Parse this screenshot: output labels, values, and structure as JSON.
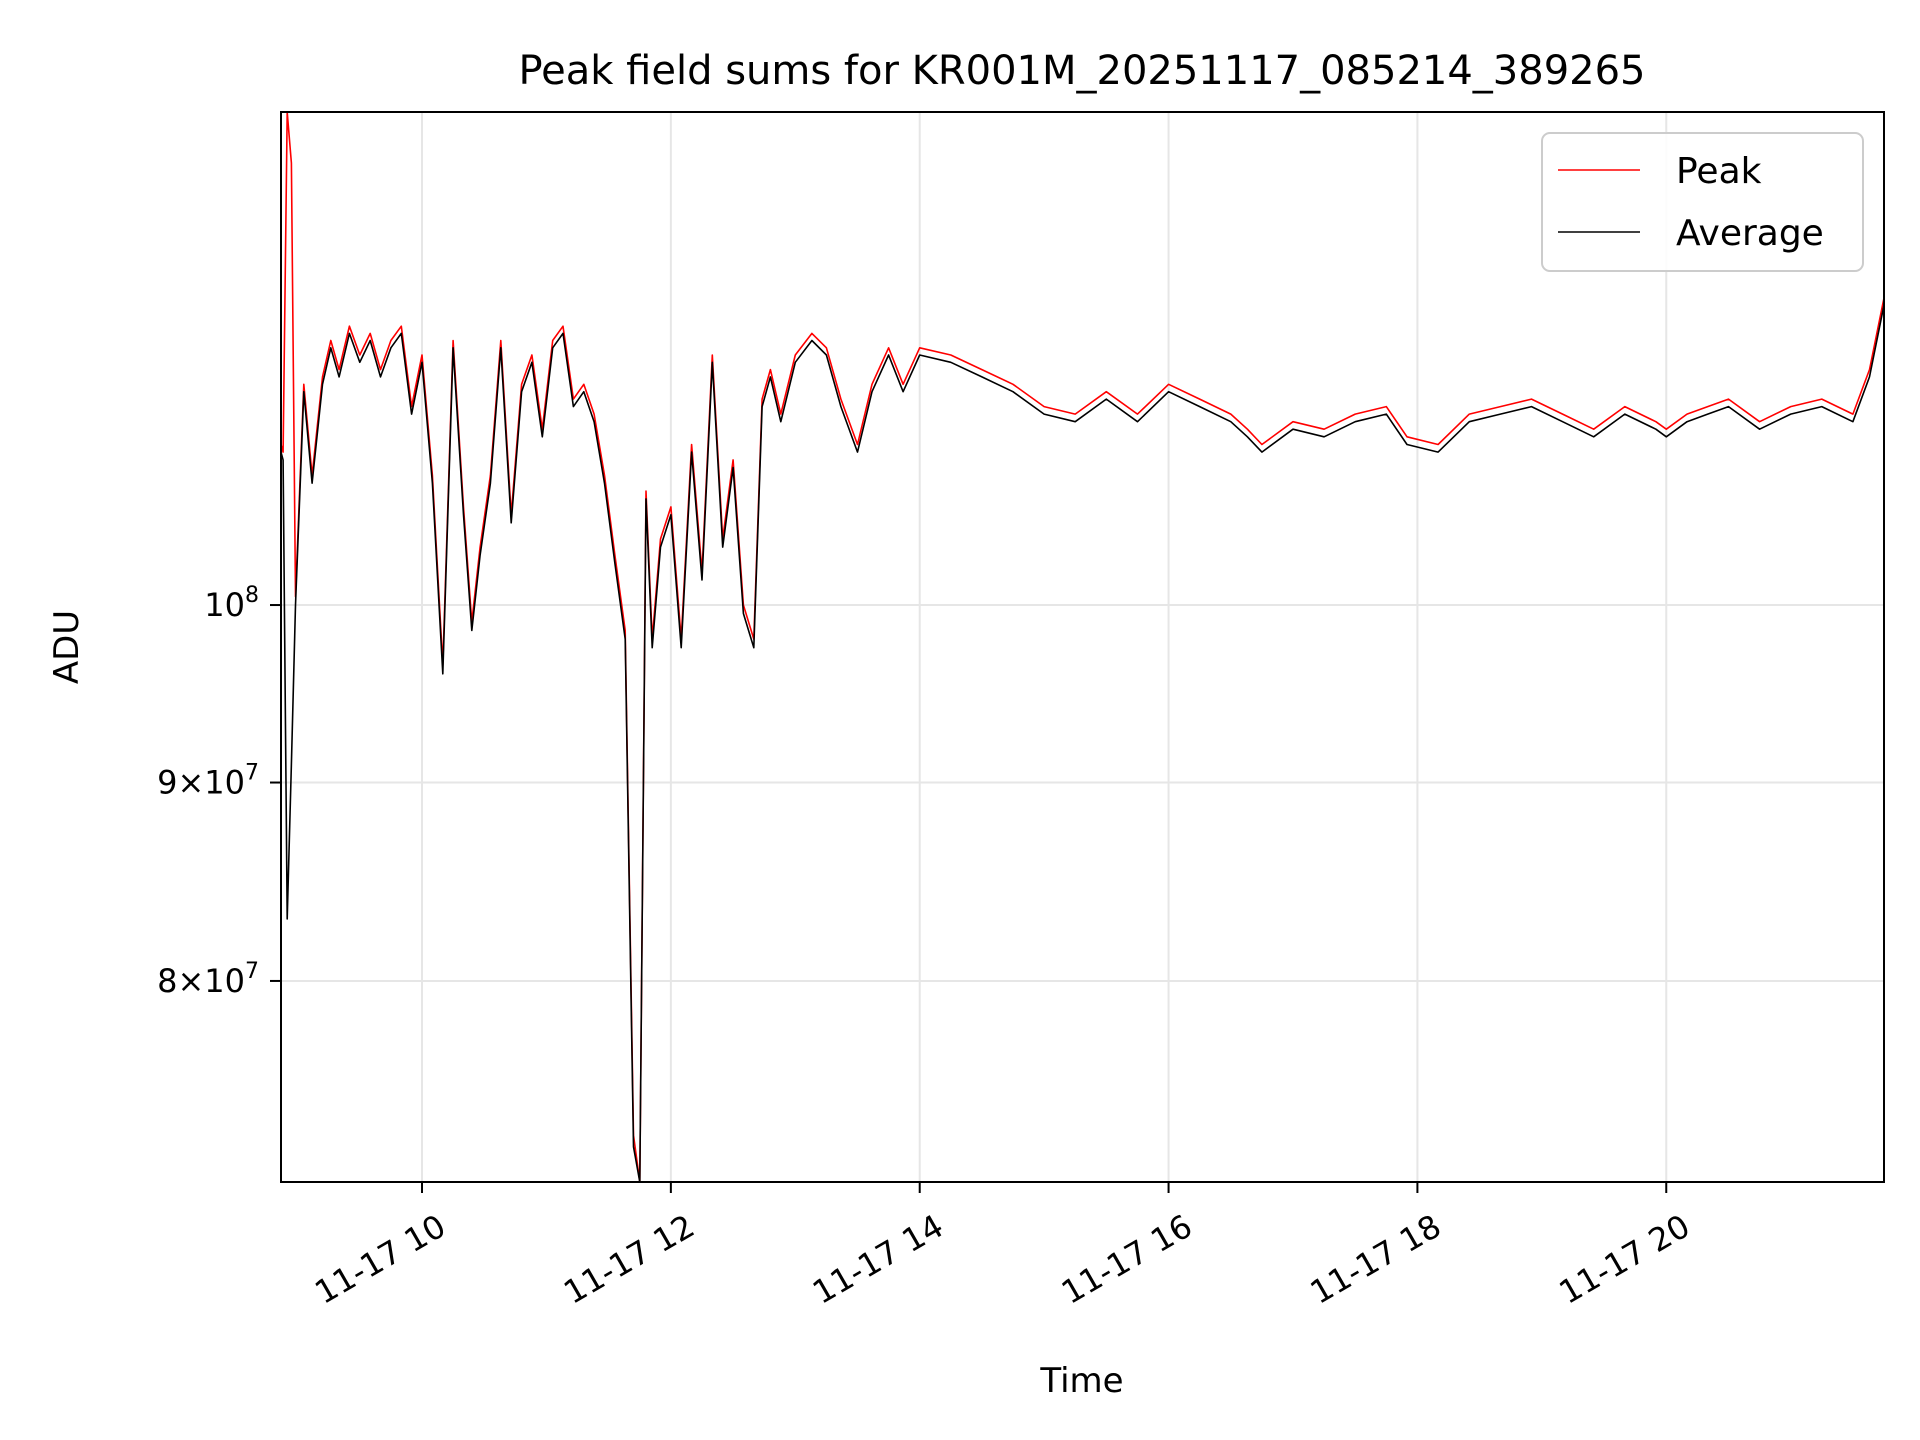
{
  "chart_data": {
    "type": "line",
    "title": "Peak field sums for KR001M_20251117_085214_389265",
    "xlabel": "Time",
    "ylabel": "ADU",
    "yscale": "log",
    "xlim": [
      "2025-11-17 08:52",
      "2025-11-17 21:45"
    ],
    "ylim": [
      71000000,
      134000000
    ],
    "x_ticks": [
      {
        "label": "11-17 10",
        "value": "2025-11-17 10:00"
      },
      {
        "label": "11-17 12",
        "value": "2025-11-17 12:00"
      },
      {
        "label": "11-17 14",
        "value": "2025-11-17 14:00"
      },
      {
        "label": "11-17 16",
        "value": "2025-11-17 16:00"
      },
      {
        "label": "11-17 18",
        "value": "2025-11-17 18:00"
      },
      {
        "label": "11-17 20",
        "value": "2025-11-17 20:00"
      }
    ],
    "y_ticks": [
      {
        "value": 100000000,
        "mantissa": "",
        "base": "10",
        "exp": "8"
      },
      {
        "value": 90000000,
        "mantissa": "9",
        "base": "10",
        "exp": "7"
      },
      {
        "value": 80000000,
        "mantissa": "8",
        "base": "10",
        "exp": "7"
      }
    ],
    "grid": true,
    "legend": "upper-right",
    "series": [
      {
        "name": "Peak",
        "color": "#ff0000",
        "x": [
          "2025-11-17 08:52",
          "2025-11-17 08:53",
          "2025-11-17 08:55",
          "2025-11-17 08:57",
          "2025-11-17 08:59",
          "2025-11-17 09:03",
          "2025-11-17 09:07",
          "2025-11-17 09:12",
          "2025-11-17 09:16",
          "2025-11-17 09:20",
          "2025-11-17 09:25",
          "2025-11-17 09:30",
          "2025-11-17 09:35",
          "2025-11-17 09:40",
          "2025-11-17 09:45",
          "2025-11-17 09:50",
          "2025-11-17 09:55",
          "2025-11-17 10:00",
          "2025-11-17 10:05",
          "2025-11-17 10:10",
          "2025-11-17 10:15",
          "2025-11-17 10:20",
          "2025-11-17 10:24",
          "2025-11-17 10:28",
          "2025-11-17 10:33",
          "2025-11-17 10:38",
          "2025-11-17 10:43",
          "2025-11-17 10:48",
          "2025-11-17 10:53",
          "2025-11-17 10:58",
          "2025-11-17 11:03",
          "2025-11-17 11:08",
          "2025-11-17 11:13",
          "2025-11-17 11:18",
          "2025-11-17 11:23",
          "2025-11-17 11:28",
          "2025-11-17 11:33",
          "2025-11-17 11:38",
          "2025-11-17 11:42",
          "2025-11-17 11:45",
          "2025-11-17 11:48",
          "2025-11-17 11:51",
          "2025-11-17 11:55",
          "2025-11-17 12:00",
          "2025-11-17 12:05",
          "2025-11-17 12:10",
          "2025-11-17 12:15",
          "2025-11-17 12:20",
          "2025-11-17 12:25",
          "2025-11-17 12:30",
          "2025-11-17 12:35",
          "2025-11-17 12:40",
          "2025-11-17 12:44",
          "2025-11-17 12:48",
          "2025-11-17 12:53",
          "2025-11-17 13:00",
          "2025-11-17 13:08",
          "2025-11-17 13:15",
          "2025-11-17 13:22",
          "2025-11-17 13:30",
          "2025-11-17 13:37",
          "2025-11-17 13:45",
          "2025-11-17 13:52",
          "2025-11-17 14:00",
          "2025-11-17 14:15",
          "2025-11-17 14:30",
          "2025-11-17 14:45",
          "2025-11-17 15:00",
          "2025-11-17 15:15",
          "2025-11-17 15:30",
          "2025-11-17 15:45",
          "2025-11-17 16:00",
          "2025-11-17 16:15",
          "2025-11-17 16:30",
          "2025-11-17 16:38",
          "2025-11-17 16:45",
          "2025-11-17 17:00",
          "2025-11-17 17:15",
          "2025-11-17 17:30",
          "2025-11-17 17:45",
          "2025-11-17 17:55",
          "2025-11-17 18:10",
          "2025-11-17 18:25",
          "2025-11-17 18:40",
          "2025-11-17 18:55",
          "2025-11-17 19:10",
          "2025-11-17 19:25",
          "2025-11-17 19:40",
          "2025-11-17 19:55",
          "2025-11-17 20:00",
          "2025-11-17 20:10",
          "2025-11-17 20:20",
          "2025-11-17 20:30",
          "2025-11-17 20:45",
          "2025-11-17 21:00",
          "2025-11-17 21:15",
          "2025-11-17 21:30",
          "2025-11-17 21:38",
          "2025-11-17 21:45"
        ],
        "y": [
          110000000,
          109500000,
          134000000,
          130000000,
          100500000,
          114000000,
          108000000,
          114500000,
          117000000,
          115000000,
          118000000,
          116000000,
          117500000,
          115000000,
          117000000,
          118000000,
          112500000,
          116000000,
          108000000,
          96500000,
          117000000,
          106000000,
          99000000,
          103500000,
          108000000,
          117000000,
          105500000,
          114000000,
          116000000,
          111000000,
          117000000,
          118000000,
          113000000,
          114000000,
          112000000,
          108000000,
          103000000,
          98500000,
          73000000,
          71000000,
          107000000,
          98000000,
          104000000,
          106000000,
          98000000,
          110000000,
          102000000,
          116000000,
          104000000,
          109000000,
          100000000,
          98000000,
          113000000,
          115000000,
          112000000,
          116000000,
          117500000,
          116500000,
          113000000,
          110000000,
          114000000,
          116500000,
          114000000,
          116500000,
          116000000,
          115000000,
          114000000,
          112500000,
          112000000,
          113500000,
          112000000,
          114000000,
          113000000,
          112000000,
          111000000,
          110000000,
          111500000,
          111000000,
          112000000,
          112500000,
          110500000,
          110000000,
          112000000,
          112500000,
          113000000,
          112000000,
          111000000,
          112500000,
          111500000,
          111000000,
          112000000,
          112500000,
          113000000,
          111500000,
          112500000,
          113000000,
          112000000,
          115000000,
          120000000
        ]
      },
      {
        "name": "Average",
        "color": "#000000",
        "x": [
          "2025-11-17 08:52",
          "2025-11-17 08:53",
          "2025-11-17 08:55",
          "2025-11-17 08:57",
          "2025-11-17 08:59",
          "2025-11-17 09:03",
          "2025-11-17 09:07",
          "2025-11-17 09:12",
          "2025-11-17 09:16",
          "2025-11-17 09:20",
          "2025-11-17 09:25",
          "2025-11-17 09:30",
          "2025-11-17 09:35",
          "2025-11-17 09:40",
          "2025-11-17 09:45",
          "2025-11-17 09:50",
          "2025-11-17 09:55",
          "2025-11-17 10:00",
          "2025-11-17 10:05",
          "2025-11-17 10:10",
          "2025-11-17 10:15",
          "2025-11-17 10:20",
          "2025-11-17 10:24",
          "2025-11-17 10:28",
          "2025-11-17 10:33",
          "2025-11-17 10:38",
          "2025-11-17 10:43",
          "2025-11-17 10:48",
          "2025-11-17 10:53",
          "2025-11-17 10:58",
          "2025-11-17 11:03",
          "2025-11-17 11:08",
          "2025-11-17 11:13",
          "2025-11-17 11:18",
          "2025-11-17 11:23",
          "2025-11-17 11:28",
          "2025-11-17 11:33",
          "2025-11-17 11:38",
          "2025-11-17 11:42",
          "2025-11-17 11:45",
          "2025-11-17 11:48",
          "2025-11-17 11:51",
          "2025-11-17 11:55",
          "2025-11-17 12:00",
          "2025-11-17 12:05",
          "2025-11-17 12:10",
          "2025-11-17 12:15",
          "2025-11-17 12:20",
          "2025-11-17 12:25",
          "2025-11-17 12:30",
          "2025-11-17 12:35",
          "2025-11-17 12:40",
          "2025-11-17 12:44",
          "2025-11-17 12:48",
          "2025-11-17 12:53",
          "2025-11-17 13:00",
          "2025-11-17 13:08",
          "2025-11-17 13:15",
          "2025-11-17 13:22",
          "2025-11-17 13:30",
          "2025-11-17 13:37",
          "2025-11-17 13:45",
          "2025-11-17 13:52",
          "2025-11-17 14:00",
          "2025-11-17 14:15",
          "2025-11-17 14:30",
          "2025-11-17 14:45",
          "2025-11-17 15:00",
          "2025-11-17 15:15",
          "2025-11-17 15:30",
          "2025-11-17 15:45",
          "2025-11-17 16:00",
          "2025-11-17 16:15",
          "2025-11-17 16:30",
          "2025-11-17 16:38",
          "2025-11-17 16:45",
          "2025-11-17 17:00",
          "2025-11-17 17:15",
          "2025-11-17 17:30",
          "2025-11-17 17:45",
          "2025-11-17 17:55",
          "2025-11-17 18:10",
          "2025-11-17 18:25",
          "2025-11-17 18:40",
          "2025-11-17 18:55",
          "2025-11-17 19:10",
          "2025-11-17 19:25",
          "2025-11-17 19:40",
          "2025-11-17 19:55",
          "2025-11-17 20:00",
          "2025-11-17 20:10",
          "2025-11-17 20:20",
          "2025-11-17 20:30",
          "2025-11-17 20:45",
          "2025-11-17 21:00",
          "2025-11-17 21:15",
          "2025-11-17 21:30",
          "2025-11-17 21:38",
          "2025-11-17 21:45"
        ],
        "y": [
          109500000,
          109000000,
          83000000,
          91000000,
          100000000,
          113500000,
          107500000,
          114000000,
          116500000,
          114500000,
          117500000,
          115500000,
          117000000,
          114500000,
          116500000,
          117500000,
          112000000,
          115500000,
          107500000,
          96000000,
          116500000,
          105500000,
          98500000,
          103000000,
          107500000,
          116500000,
          105000000,
          113500000,
          115500000,
          110500000,
          116500000,
          117500000,
          112500000,
          113500000,
          111500000,
          107500000,
          102500000,
          98000000,
          72500000,
          71000000,
          106500000,
          97500000,
          103500000,
          105500000,
          97500000,
          109500000,
          101500000,
          115500000,
          103500000,
          108500000,
          99500000,
          97500000,
          112500000,
          114500000,
          111500000,
          115500000,
          117000000,
          116000000,
          112500000,
          109500000,
          113500000,
          116000000,
          113500000,
          116000000,
          115500000,
          114500000,
          113500000,
          112000000,
          111500000,
          113000000,
          111500000,
          113500000,
          112500000,
          111500000,
          110500000,
          109500000,
          111000000,
          110500000,
          111500000,
          112000000,
          110000000,
          109500000,
          111500000,
          112000000,
          112500000,
          111500000,
          110500000,
          112000000,
          111000000,
          110500000,
          111500000,
          112000000,
          112500000,
          111000000,
          112000000,
          112500000,
          111500000,
          114500000,
          119500000
        ]
      }
    ]
  }
}
